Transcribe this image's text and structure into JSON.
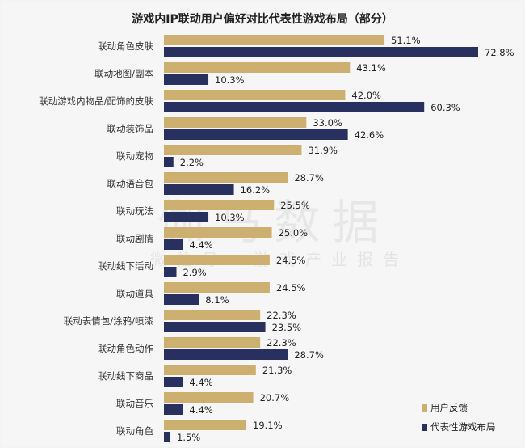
{
  "watermark": {
    "logo": "伽马数据",
    "sub": "微信号：游戏产业报告"
  },
  "chart_data": {
    "type": "bar",
    "orientation": "horizontal",
    "title": "游戏内IP联动用户偏好对比代表性游戏布局（部分）",
    "categories": [
      "联动角色皮肤",
      "联动地图/副本",
      "联动游戏内物品/配饰的皮肤",
      "联动装饰品",
      "联动宠物",
      "联动语音包",
      "联动玩法",
      "联动剧情",
      "联动线下活动",
      "联动道具",
      "联动表情包/涂鸦/喷漆",
      "联动角色动作",
      "联动线下商品",
      "联动音乐",
      "联动角色"
    ],
    "series": [
      {
        "name": "用户反馈",
        "color": "#cdb070",
        "values": [
          51.1,
          43.1,
          42.0,
          33.0,
          31.9,
          28.7,
          25.5,
          25.0,
          24.5,
          24.5,
          22.3,
          22.3,
          21.3,
          20.7,
          19.1
        ]
      },
      {
        "name": "代表性游戏布局",
        "color": "#27305e",
        "values": [
          72.8,
          10.3,
          60.3,
          42.6,
          2.2,
          16.2,
          10.3,
          4.4,
          2.9,
          8.1,
          23.5,
          28.7,
          4.4,
          4.4,
          1.5
        ]
      }
    ],
    "value_format": "percent_1dp",
    "grid": false,
    "legend_position": "bottom-right"
  }
}
